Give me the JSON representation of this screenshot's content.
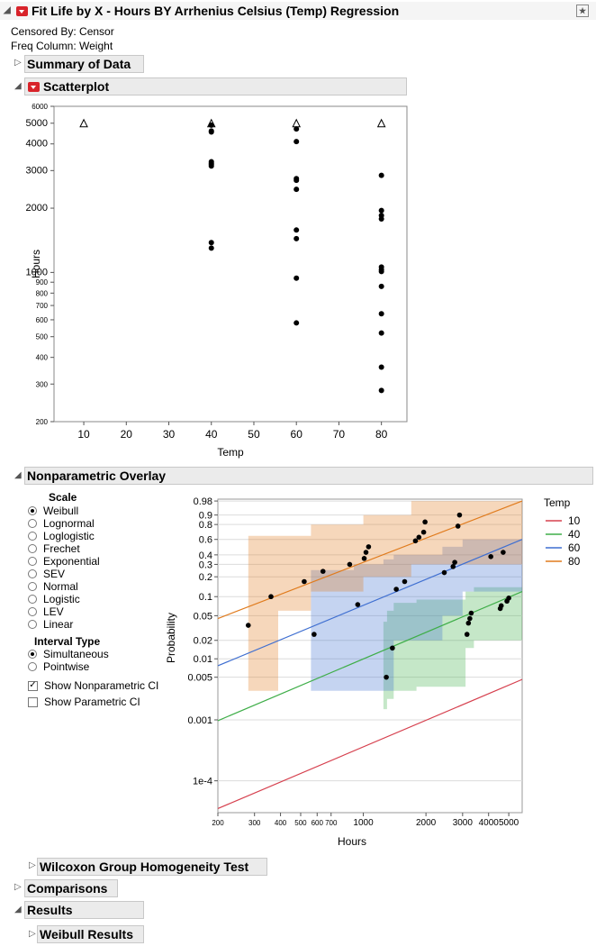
{
  "report": {
    "title": "Fit Life by X - Hours BY Arrhenius Celsius (Temp) Regression",
    "censored_by": "Censored By: Censor",
    "freq_column": "Freq Column: Weight"
  },
  "sections": {
    "summary": "Summary of Data",
    "scatter": "Scatterplot",
    "overlay": "Nonparametric Overlay",
    "wilcoxon": "Wilcoxon Group Homogeneity Test",
    "comparisons": "Comparisons",
    "results": "Results",
    "weibull": "Weibull Results"
  },
  "controls": {
    "scale_label": "Scale",
    "scale_options": [
      "Weibull",
      "Lognormal",
      "Loglogistic",
      "Frechet",
      "Exponential",
      "SEV",
      "Normal",
      "Logistic",
      "LEV",
      "Linear"
    ],
    "scale_selected": 0,
    "interval_label": "Interval Type",
    "interval_options": [
      "Simultaneous",
      "Pointwise"
    ],
    "interval_selected": 0,
    "show_np_ci": "Show Nonparametric CI",
    "show_np_ci_checked": true,
    "show_p_ci": "Show Parametric CI",
    "show_p_ci_checked": false
  },
  "colors": {
    "t10": "#d6404e",
    "t40": "#3fae49",
    "t60": "#3f6fd1",
    "t80": "#e07b1d"
  },
  "chart_data": [
    {
      "type": "scatter",
      "title": "Scatterplot",
      "xlabel": "Temp",
      "ylabel": "Hours",
      "x_ticks": [
        10,
        20,
        30,
        40,
        50,
        60,
        70,
        80
      ],
      "y_ticks": [
        200,
        300,
        400,
        500,
        600,
        700,
        800,
        900,
        1000,
        2000,
        3000,
        4000,
        5000,
        6000
      ],
      "y_scale": "log",
      "xlim": [
        3,
        86
      ],
      "ylim": [
        200,
        6000
      ],
      "points": [
        [
          40,
          4900
        ],
        [
          40,
          4600
        ],
        [
          40,
          4550
        ],
        [
          40,
          3300
        ],
        [
          40,
          3250
        ],
        [
          40,
          3200
        ],
        [
          40,
          3150
        ],
        [
          40,
          1380
        ],
        [
          40,
          1300
        ],
        [
          60,
          4700
        ],
        [
          60,
          4100
        ],
        [
          60,
          2750
        ],
        [
          60,
          2700
        ],
        [
          60,
          2450
        ],
        [
          60,
          1580
        ],
        [
          60,
          1440
        ],
        [
          60,
          940
        ],
        [
          60,
          580
        ],
        [
          80,
          2850
        ],
        [
          80,
          1950
        ],
        [
          80,
          1850
        ],
        [
          80,
          1780
        ],
        [
          80,
          1060
        ],
        [
          80,
          1030
        ],
        [
          80,
          1010
        ],
        [
          80,
          860
        ],
        [
          80,
          640
        ],
        [
          80,
          520
        ],
        [
          80,
          360
        ],
        [
          80,
          280
        ]
      ],
      "censored_points": [
        [
          10,
          5000
        ],
        [
          40,
          5000
        ],
        [
          60,
          5000
        ],
        [
          80,
          5000
        ]
      ]
    },
    {
      "type": "line",
      "title": "Nonparametric Overlay",
      "xlabel": "Hours",
      "ylabel": "Probability",
      "x_scale": "log",
      "y_scale": "weibull",
      "x_ticks": [
        200,
        300,
        400,
        500,
        600,
        700,
        1000,
        2000,
        3000,
        4000,
        5000
      ],
      "x_tick_labels": [
        "200",
        "300",
        "400",
        "500",
        "600",
        "700",
        "1000",
        "2000",
        "3000",
        "4000",
        "5000"
      ],
      "y_ticks": [
        0.0001,
        0.001,
        0.005,
        0.01,
        0.02,
        0.05,
        0.1,
        0.2,
        0.3,
        0.4,
        0.6,
        0.8,
        0.9,
        0.98
      ],
      "y_tick_labels": [
        "1e-4",
        "0.001",
        "0.005",
        "0.01",
        "0.02",
        "0.05",
        "0.1",
        "0.2",
        "0.3",
        "0.4",
        "0.6",
        "0.8",
        "0.9",
        "0.98"
      ],
      "legend_title": "Temp",
      "series": [
        {
          "name": "10",
          "color": "#d6404e",
          "line": [
            [
              200,
              3.5e-05
            ],
            [
              5800,
              0.0046
            ]
          ],
          "points": [],
          "band": []
        },
        {
          "name": "40",
          "color": "#3fae49",
          "line": [
            [
              200,
              0.00097
            ],
            [
              5800,
              0.12
            ]
          ],
          "points": [
            [
              1290,
              0.005
            ],
            [
              1380,
              0.015
            ],
            [
              3150,
              0.025
            ],
            [
              3200,
              0.038
            ],
            [
              3250,
              0.045
            ],
            [
              3300,
              0.055
            ],
            [
              4550,
              0.065
            ],
            [
              4600,
              0.072
            ],
            [
              4900,
              0.085
            ],
            [
              5000,
              0.095
            ]
          ],
          "band": [
            [
              1250,
              0.0015,
              0.04
            ],
            [
              1300,
              0.0022,
              0.06
            ],
            [
              1400,
              0.003,
              0.08
            ],
            [
              1800,
              0.0035,
              0.09
            ],
            [
              3100,
              0.015,
              0.12
            ],
            [
              3400,
              0.02,
              0.14
            ],
            [
              5800,
              0.02,
              0.14
            ]
          ]
        },
        {
          "name": "60",
          "color": "#3f6fd1",
          "line": [
            [
              200,
              0.0077
            ],
            [
              5800,
              0.6
            ]
          ],
          "points": [
            [
              580,
              0.025
            ],
            [
              940,
              0.075
            ],
            [
              1440,
              0.13
            ],
            [
              1580,
              0.17
            ],
            [
              2450,
              0.23
            ],
            [
              2700,
              0.28
            ],
            [
              2750,
              0.32
            ],
            [
              4100,
              0.38
            ],
            [
              4700,
              0.43
            ]
          ],
          "band": [
            [
              560,
              0.003,
              0.25
            ],
            [
              900,
              0.003,
              0.3
            ],
            [
              1250,
              0.003,
              0.35
            ],
            [
              1400,
              0.02,
              0.4
            ],
            [
              2400,
              0.05,
              0.5
            ],
            [
              3000,
              0.12,
              0.6
            ],
            [
              5800,
              0.2,
              0.7
            ]
          ]
        },
        {
          "name": "80",
          "color": "#e07b1d",
          "line": [
            [
              200,
              0.045
            ],
            [
              5800,
              0.98
            ]
          ],
          "points": [
            [
              280,
              0.035
            ],
            [
              360,
              0.1
            ],
            [
              520,
              0.17
            ],
            [
              640,
              0.24
            ],
            [
              860,
              0.3
            ],
            [
              1010,
              0.36
            ],
            [
              1030,
              0.43
            ],
            [
              1060,
              0.5
            ],
            [
              1780,
              0.58
            ],
            [
              1850,
              0.63
            ],
            [
              1950,
              0.7
            ],
            [
              2850,
              0.78
            ],
            [
              1980,
              0.83
            ],
            [
              2900,
              0.9
            ]
          ],
          "band": [
            [
              280,
              0.003,
              0.65
            ],
            [
              390,
              0.06,
              0.65
            ],
            [
              560,
              0.12,
              0.8
            ],
            [
              1000,
              0.2,
              0.9
            ],
            [
              1700,
              0.3,
              0.98
            ],
            [
              5800,
              0.35,
              0.98
            ]
          ]
        }
      ]
    }
  ]
}
